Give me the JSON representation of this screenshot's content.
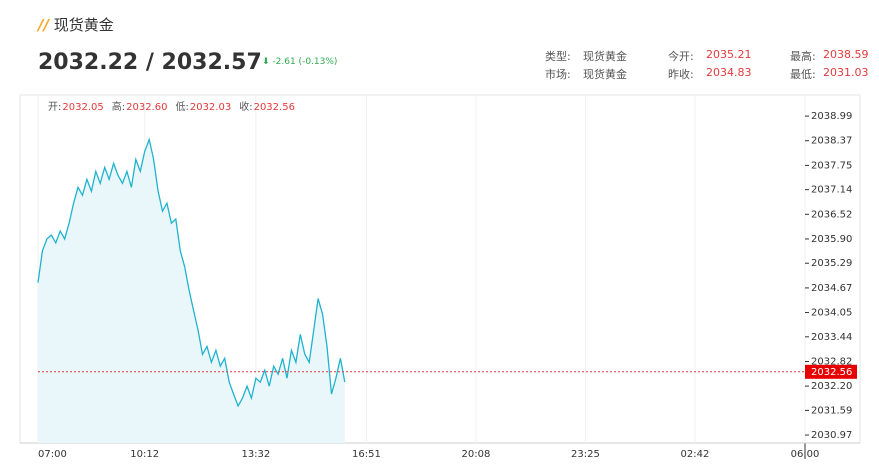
{
  "header": {
    "title": "现货黄金",
    "price": "2032.22 / 2032.57",
    "change": "-2.61 (-0.13%)",
    "info": [
      [
        "类型:",
        "现货黄金"
      ],
      [
        "今开:",
        "2035.21"
      ],
      [
        "最高:",
        "2038.59"
      ],
      [
        "市场:",
        "现货黄金"
      ],
      [
        "昨收:",
        "2034.83"
      ],
      [
        "最低:",
        "2031.03"
      ]
    ]
  },
  "chart_data": {
    "type": "line",
    "ohlc": [
      [
        "开:",
        "2032.05"
      ],
      [
        "高:",
        "2032.60"
      ],
      [
        "低:",
        "2032.03"
      ],
      [
        "收:",
        "2032.56"
      ]
    ],
    "x": [
      0,
      8,
      16,
      24,
      32,
      40,
      48,
      56,
      64,
      72,
      80,
      88,
      96,
      104,
      112,
      120,
      128,
      136,
      144,
      152,
      160,
      168,
      176,
      184,
      192,
      200,
      208,
      216,
      224,
      232,
      240,
      248,
      256,
      264,
      272,
      280,
      288,
      296,
      304,
      312,
      320,
      328,
      336,
      344,
      352,
      360,
      368,
      376,
      384,
      392,
      400,
      408,
      416,
      424,
      432,
      440,
      448,
      456,
      464,
      472,
      480,
      488,
      496,
      504,
      512,
      520,
      528,
      536,
      544,
      552
    ],
    "series": [
      {
        "color": "#1fb3cf",
        "values": [
          2034.8,
          2035.6,
          2035.9,
          2036.0,
          2035.8,
          2036.1,
          2035.9,
          2036.3,
          2036.8,
          2037.2,
          2037.0,
          2037.4,
          2037.1,
          2037.6,
          2037.3,
          2037.7,
          2037.4,
          2037.8,
          2037.5,
          2037.3,
          2037.6,
          2037.2,
          2037.9,
          2037.6,
          2038.1,
          2038.4,
          2037.9,
          2037.1,
          2036.6,
          2036.8,
          2036.3,
          2036.4,
          2035.6,
          2035.2,
          2034.6,
          2034.1,
          2033.6,
          2033.0,
          2033.2,
          2032.8,
          2033.1,
          2032.7,
          2032.9,
          2032.3,
          2032.0,
          2031.7,
          2031.9,
          2032.2,
          2031.9,
          2032.4,
          2032.3,
          2032.6,
          2032.2,
          2032.7,
          2032.5,
          2032.9,
          2032.4,
          2033.1,
          2032.8,
          2033.5,
          2033.0,
          2032.8,
          2033.6,
          2034.4,
          2034.0,
          2033.2,
          2032.0,
          2032.4,
          2032.9,
          2032.3
        ]
      }
    ],
    "xlim": [
      0,
      1380
    ],
    "xticks": [
      {
        "value": 0,
        "label": "07:00"
      },
      {
        "value": 192,
        "label": "10:12"
      },
      {
        "value": 392,
        "label": "13:32"
      },
      {
        "value": 591,
        "label": "16:51"
      },
      {
        "value": 788,
        "label": "20:08"
      },
      {
        "value": 985,
        "label": "23:25"
      },
      {
        "value": 1182,
        "label": "02:42"
      },
      {
        "value": 1380,
        "label": "06:00"
      }
    ],
    "ylim": [
      2030.77,
      2039.52
    ],
    "yticks": [
      2030.97,
      2031.59,
      {
        "value": 2032.2,
        "label": "2032.20"
      },
      2032.82,
      2033.44,
      2034.05,
      2034.67,
      2035.29,
      {
        "value": 2035.9,
        "label": "2035.90"
      },
      2036.52,
      2037.14,
      2037.75,
      2038.37,
      2038.99
    ],
    "ref_line": 2032.56,
    "grid": true
  }
}
